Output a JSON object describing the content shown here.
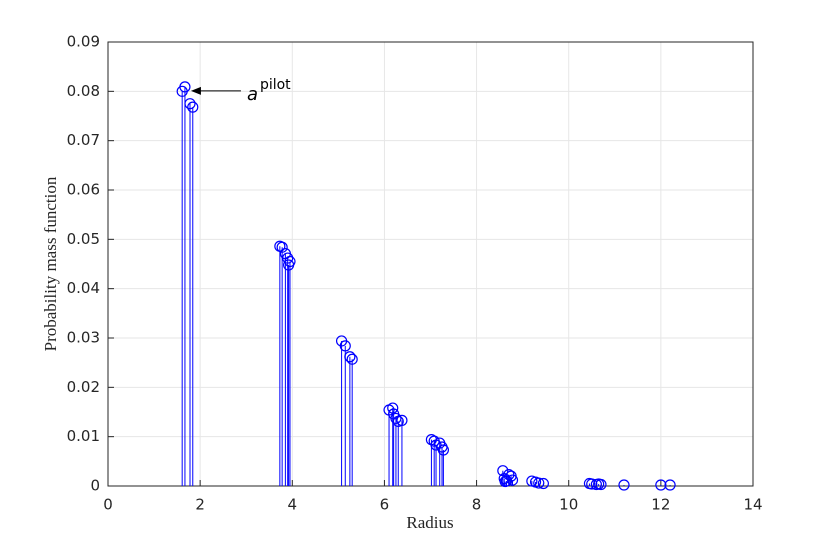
{
  "chart_data": {
    "type": "stem",
    "xlabel": "Radius",
    "ylabel": "Probability mass function",
    "annotation": {
      "text": "a",
      "superscript": "pilot"
    },
    "color": "#0000ff",
    "grid": true,
    "xlim": [
      0,
      14
    ],
    "xticks": [
      0,
      2,
      4,
      6,
      8,
      10,
      12,
      14
    ],
    "ylim": [
      0,
      0.09
    ],
    "yticks": [
      0,
      0.01,
      0.02,
      0.03,
      0.04,
      0.05,
      0.06,
      0.07,
      0.08,
      0.09
    ],
    "x": [
      1.61,
      1.67,
      1.78,
      1.84,
      3.73,
      3.78,
      3.85,
      3.9,
      3.95,
      3.92,
      5.07,
      5.15,
      5.25,
      5.3,
      6.1,
      6.18,
      6.2,
      6.25,
      6.3,
      6.38,
      7.02,
      7.08,
      7.12,
      7.2,
      7.25,
      7.28,
      8.57,
      8.6,
      8.62,
      8.65,
      8.7,
      8.75,
      8.78,
      9.2,
      9.28,
      9.35,
      9.45,
      10.45,
      10.5,
      10.6,
      10.65,
      10.7,
      11.2,
      12.0,
      12.2
    ],
    "values": [
      0.08,
      0.0809,
      0.0775,
      0.0768,
      0.0486,
      0.0484,
      0.0471,
      0.0462,
      0.0455,
      0.0448,
      0.0294,
      0.0284,
      0.0262,
      0.0257,
      0.0154,
      0.0158,
      0.0146,
      0.0137,
      0.0131,
      0.0133,
      0.0094,
      0.0091,
      0.0083,
      0.0087,
      0.0079,
      0.0073,
      0.0031,
      0.0015,
      0.0009,
      0.001,
      0.0023,
      0.002,
      0.0012,
      0.001,
      0.0008,
      0.0006,
      0.0005,
      0.0005,
      0.0004,
      0.0003,
      0.0004,
      0.0003,
      0.0002,
      0.0002,
      0.0002
    ]
  }
}
